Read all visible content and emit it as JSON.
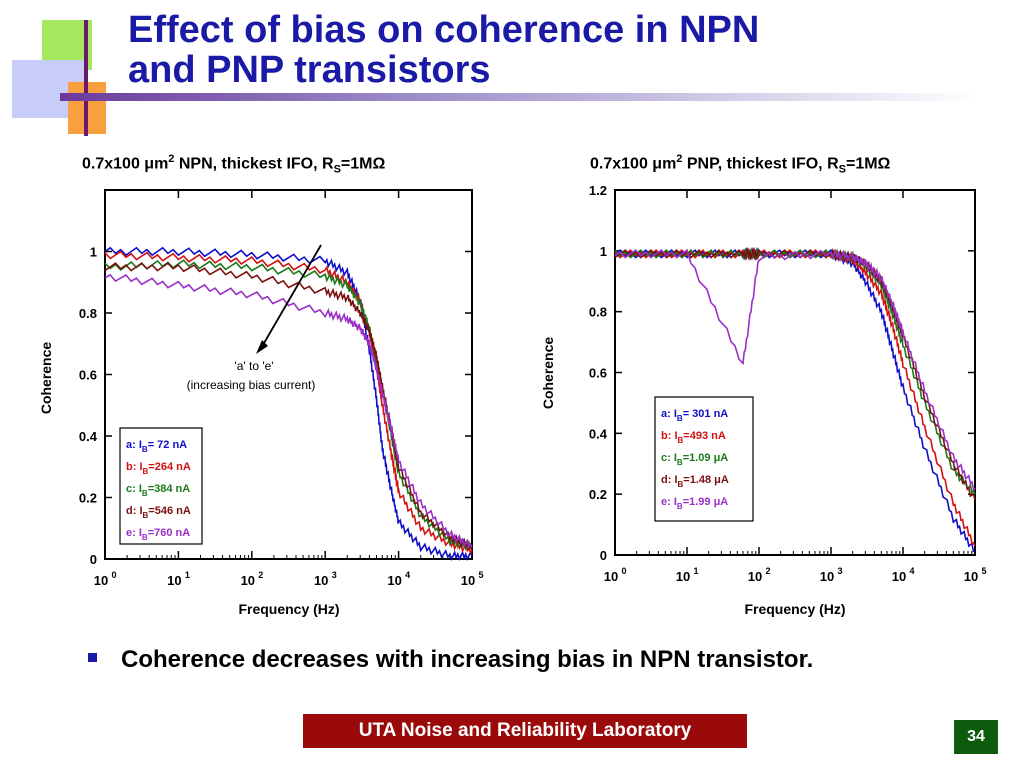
{
  "slide": {
    "title_line1": "Effect of bias on coherence in NPN",
    "title_line2": "and PNP transistors",
    "bullet": "Coherence decreases with increasing bias in NPN transistor.",
    "footer": "UTA Noise and Reliability Laboratory",
    "page_number": "34"
  },
  "colors": {
    "title": "#1a1aa6",
    "a": "#1010c8",
    "b": "#d41010",
    "c": "#1a7a1a",
    "d": "#7a1010",
    "e": "#9a30c8",
    "footer_bg": "#9b0a0a",
    "page_bg": "#0d5c0d"
  },
  "chart_data": [
    {
      "type": "line",
      "title_prefix": "0.7x100 μm",
      "title_sup": "2",
      "title_mid": " NPN, thickest IFO, R",
      "title_sub": "S",
      "title_suffix": "=1MΩ",
      "xlabel": "Frequency (Hz)",
      "ylabel": "Coherence",
      "xscale": "log",
      "xlim": [
        1,
        100000
      ],
      "ylim": [
        0,
        1.2
      ],
      "ytick_labels": [
        "0",
        "0.2",
        "0.4",
        "0.6",
        "0.8",
        "1"
      ],
      "ytick_values": [
        0,
        0.2,
        0.4,
        0.6,
        0.8,
        1
      ],
      "xtick_exponents": [
        "0",
        "1",
        "2",
        "3",
        "4",
        "5"
      ],
      "annotation": {
        "line1": "'a' to 'e'",
        "line2": "(increasing bias current)"
      },
      "legend_position": "bottom-left",
      "series": [
        {
          "key": "a",
          "tag": "a:",
          "label_pre": "I",
          "label_sub": "B",
          "label_post": "=  72 nA",
          "x": [
            1,
            10,
            100,
            1000,
            2000,
            3000,
            4000,
            5000,
            6000,
            8000,
            10000,
            20000,
            50000,
            100000
          ],
          "y": [
            1.0,
            1.0,
            0.99,
            0.97,
            0.93,
            0.84,
            0.68,
            0.52,
            0.36,
            0.22,
            0.12,
            0.04,
            0.01,
            0.01
          ]
        },
        {
          "key": "b",
          "tag": "b:",
          "label_pre": "I",
          "label_sub": "B",
          "label_post": "=264 nA",
          "x": [
            1,
            10,
            100,
            1000,
            2000,
            3000,
            4000,
            5000,
            6000,
            8000,
            10000,
            20000,
            50000,
            100000
          ],
          "y": [
            0.99,
            0.98,
            0.97,
            0.94,
            0.9,
            0.84,
            0.74,
            0.62,
            0.5,
            0.34,
            0.22,
            0.1,
            0.05,
            0.03
          ]
        },
        {
          "key": "c",
          "tag": "c:",
          "label_pre": "I",
          "label_sub": "B",
          "label_post": "=384 nA",
          "x": [
            1,
            10,
            100,
            1000,
            2000,
            3000,
            4000,
            5000,
            6000,
            8000,
            10000,
            20000,
            50000,
            100000
          ],
          "y": [
            0.95,
            0.96,
            0.95,
            0.92,
            0.89,
            0.83,
            0.75,
            0.65,
            0.55,
            0.4,
            0.28,
            0.14,
            0.06,
            0.04
          ]
        },
        {
          "key": "d",
          "tag": "d:",
          "label_pre": "I",
          "label_sub": "B",
          "label_post": "=546 nA",
          "x": [
            1,
            10,
            100,
            1000,
            2000,
            3000,
            4000,
            5000,
            6000,
            8000,
            10000,
            20000,
            50000,
            100000
          ],
          "y": [
            0.95,
            0.95,
            0.92,
            0.87,
            0.85,
            0.8,
            0.74,
            0.66,
            0.56,
            0.42,
            0.3,
            0.15,
            0.07,
            0.04
          ]
        },
        {
          "key": "e",
          "tag": "e:",
          "label_pre": "I",
          "label_sub": "B",
          "label_post": "=760 nA",
          "x": [
            1,
            10,
            100,
            1000,
            2000,
            3000,
            4000,
            5000,
            6000,
            8000,
            10000,
            20000,
            50000,
            100000
          ],
          "y": [
            0.92,
            0.89,
            0.86,
            0.8,
            0.78,
            0.75,
            0.7,
            0.62,
            0.54,
            0.42,
            0.32,
            0.18,
            0.08,
            0.04
          ]
        }
      ]
    },
    {
      "type": "line",
      "title_prefix": "0.7x100 μm",
      "title_sup": "2",
      "title_mid": " PNP, thickest IFO, R",
      "title_sub": "S",
      "title_suffix": "=1MΩ",
      "xlabel": "Frequency (Hz)",
      "ylabel": "Coherence",
      "xscale": "log",
      "xlim": [
        1,
        100000
      ],
      "ylim": [
        0,
        1.2
      ],
      "ytick_labels": [
        "0",
        "0.2",
        "0.4",
        "0.6",
        "0.8",
        "1",
        "1.2"
      ],
      "ytick_values": [
        0,
        0.2,
        0.4,
        0.6,
        0.8,
        1,
        1.2
      ],
      "xtick_exponents": [
        "0",
        "1",
        "2",
        "3",
        "4",
        "5"
      ],
      "legend_position": "middle-right",
      "series": [
        {
          "key": "a",
          "tag": "a:",
          "label_pre": "I",
          "label_sub": "B",
          "label_post": "=  301 nA",
          "x": [
            1,
            10,
            60,
            100,
            1000,
            2000,
            3000,
            5000,
            7000,
            10000,
            20000,
            50000,
            100000
          ],
          "y": [
            0.99,
            0.99,
            0.99,
            0.99,
            0.99,
            0.96,
            0.9,
            0.8,
            0.68,
            0.55,
            0.35,
            0.12,
            0.01
          ]
        },
        {
          "key": "b",
          "tag": "b:",
          "label_pre": "I",
          "label_sub": "B",
          "label_post": "=493 nA",
          "x": [
            1,
            10,
            60,
            100,
            1000,
            2000,
            3000,
            5000,
            7000,
            10000,
            20000,
            50000,
            100000
          ],
          "y": [
            0.99,
            0.99,
            0.99,
            0.99,
            0.99,
            0.97,
            0.93,
            0.86,
            0.76,
            0.63,
            0.42,
            0.17,
            0.03
          ]
        },
        {
          "key": "c",
          "tag": "c:",
          "label_pre": "I",
          "label_sub": "B",
          "label_post": "=1.09 μA",
          "x": [
            1,
            10,
            60,
            100,
            1000,
            2000,
            3000,
            5000,
            7000,
            10000,
            20000,
            50000,
            100000
          ],
          "y": [
            0.99,
            0.99,
            0.99,
            0.99,
            0.99,
            0.98,
            0.95,
            0.89,
            0.8,
            0.69,
            0.5,
            0.28,
            0.2
          ]
        },
        {
          "key": "d",
          "tag": "d:",
          "label_pre": "I",
          "label_sub": "B",
          "label_post": "=1.48 μA",
          "x": [
            1,
            10,
            60,
            100,
            1000,
            2000,
            3000,
            5000,
            7000,
            10000,
            20000,
            50000,
            100000
          ],
          "y": [
            0.99,
            0.99,
            0.99,
            0.99,
            0.99,
            0.98,
            0.96,
            0.9,
            0.82,
            0.72,
            0.52,
            0.3,
            0.18
          ]
        },
        {
          "key": "e",
          "tag": "e:",
          "label_pre": "I",
          "label_sub": "B",
          "label_post": "=1.99 μA",
          "x": [
            1,
            10,
            60,
            100,
            1000,
            2000,
            3000,
            5000,
            7000,
            10000,
            20000,
            50000,
            100000
          ],
          "y": [
            0.99,
            0.99,
            0.63,
            0.98,
            0.99,
            0.98,
            0.96,
            0.91,
            0.83,
            0.73,
            0.54,
            0.32,
            0.22
          ]
        }
      ]
    }
  ]
}
